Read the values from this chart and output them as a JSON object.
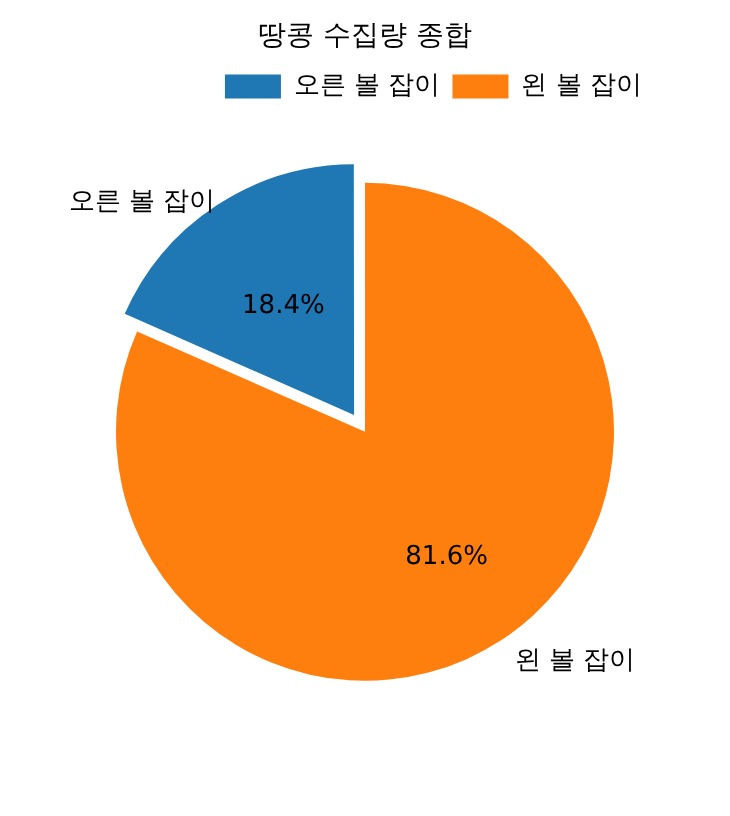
{
  "chart_data": {
    "type": "pie",
    "title": "땅콩 수집량 종합",
    "categories": [
      "오른 볼 잡이",
      "왼 볼 잡이"
    ],
    "values": [
      18.4,
      81.6
    ],
    "value_labels": [
      "18.4%",
      "81.6%"
    ],
    "colors": [
      "#1f77b4",
      "#ff7f0e"
    ],
    "legend": "top right"
  }
}
